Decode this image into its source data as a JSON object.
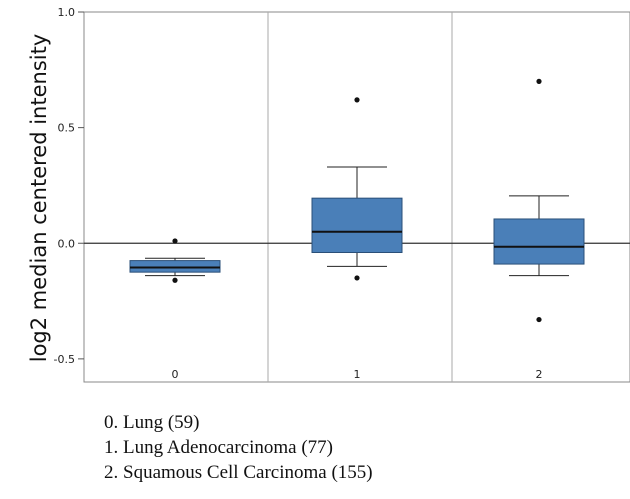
{
  "chart_data": {
    "type": "box",
    "ylabel": "log2 median centered intensity",
    "ylim": [
      -0.6,
      1.0
    ],
    "yticks": [
      "1.0",
      "0.5",
      "0.0",
      "-0.5"
    ],
    "ytick_values": [
      1.0,
      0.5,
      0.0,
      -0.5
    ],
    "reference_line": 0.0,
    "grid": "vertical separators between groups",
    "box_color": "#4a7fb8",
    "categories": [
      "0",
      "1",
      "2"
    ],
    "boxes": [
      {
        "category": "0",
        "whisker_low": -0.14,
        "q1": -0.125,
        "median": -0.105,
        "q3": -0.075,
        "whisker_high": -0.065,
        "outliers": [
          0.01,
          -0.16
        ]
      },
      {
        "category": "1",
        "whisker_low": -0.1,
        "q1": -0.04,
        "median": 0.05,
        "q3": 0.195,
        "whisker_high": 0.33,
        "outliers": [
          0.62,
          -0.15
        ]
      },
      {
        "category": "2",
        "whisker_low": -0.14,
        "q1": -0.09,
        "median": -0.015,
        "q3": 0.105,
        "whisker_high": 0.205,
        "outliers": [
          0.7,
          -0.33
        ]
      }
    ],
    "legend": [
      "0. Lung (59)",
      "1. Lung Adenocarcinoma (77)",
      "2. Squamous Cell Carcinoma (155)"
    ]
  }
}
